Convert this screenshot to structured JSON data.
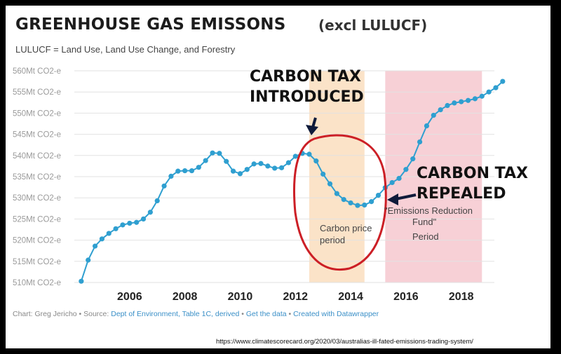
{
  "header": {
    "title": "GREENHOUSE GAS EMISSONS",
    "title_suffix": "(excl LULUCF)",
    "subtitle": "LULUCF = Land Use, Land Use Change, and Forestry"
  },
  "footer": {
    "prefix": "Chart: Greg Jericho • Source: ",
    "source_link": "Dept of Environment, Table 1C, derived",
    "sep1": " • ",
    "get_data_link": "Get the data",
    "sep2": " • ",
    "created_link": "Created with Datawrapper",
    "url": "https://www.climatescorecard.org/2020/03/australias-ill-fated-emissions-trading-system/"
  },
  "colors": {
    "line": "#2f9fd0",
    "carbon_price_band": "#fbe3c8",
    "erf_band": "#f7d0d6",
    "circle": "#cc1f26",
    "arrow": "#0f1a3a"
  },
  "annotations": {
    "introduced_1": "CARBON TAX",
    "introduced_2": "INTRODUCED",
    "repealed_1": "CARBON TAX",
    "repealed_2": "REPEALED",
    "carbon_price_1": "Carbon price",
    "carbon_price_2": "period",
    "erf_1": "\"Emissions Reduction",
    "erf_2": "Fund\"",
    "erf_3": "Period"
  },
  "chart_data": {
    "type": "line",
    "title": "GREENHOUSE GAS EMISSONS",
    "xlabel": "",
    "ylabel": "",
    "xlim": [
      2004.0,
      2019.2
    ],
    "ylim": [
      510,
      560
    ],
    "y_ticks": [
      {
        "v": 510,
        "label": "510Mt CO2-e"
      },
      {
        "v": 515,
        "label": "515Mt CO2-e"
      },
      {
        "v": 520,
        "label": "520Mt CO2-e"
      },
      {
        "v": 525,
        "label": "525Mt CO2-e"
      },
      {
        "v": 530,
        "label": "530Mt CO2-e"
      },
      {
        "v": 535,
        "label": "535Mt CO2-e"
      },
      {
        "v": 540,
        "label": "540Mt CO2-e"
      },
      {
        "v": 545,
        "label": "545Mt CO2-e"
      },
      {
        "v": 550,
        "label": "550Mt CO2-e"
      },
      {
        "v": 555,
        "label": "555Mt CO2-e"
      },
      {
        "v": 560,
        "label": "560Mt CO2-e"
      }
    ],
    "x_ticks": [
      2006,
      2008,
      2010,
      2012,
      2014,
      2016,
      2018
    ],
    "grid": true,
    "bands": [
      {
        "from": 2012.5,
        "to": 2014.5,
        "label": "Carbon price period"
      },
      {
        "from": 2015.25,
        "to": 2018.75,
        "label": "\"Emissions Reduction Fund\" Period"
      }
    ],
    "series": [
      {
        "points": [
          [
            2004.25,
            510.3
          ],
          [
            2004.5,
            515.3
          ],
          [
            2004.75,
            518.6
          ],
          [
            2005.0,
            520.3
          ],
          [
            2005.25,
            521.6
          ],
          [
            2005.5,
            522.7
          ],
          [
            2005.75,
            523.6
          ],
          [
            2006.0,
            524.0
          ],
          [
            2006.25,
            524.2
          ],
          [
            2006.5,
            525.0
          ],
          [
            2006.75,
            526.6
          ],
          [
            2007.0,
            529.3
          ],
          [
            2007.25,
            532.8
          ],
          [
            2007.5,
            535.1
          ],
          [
            2007.75,
            536.3
          ],
          [
            2008.0,
            536.4
          ],
          [
            2008.25,
            536.4
          ],
          [
            2008.5,
            537.2
          ],
          [
            2008.75,
            538.8
          ],
          [
            2009.0,
            540.6
          ],
          [
            2009.25,
            540.5
          ],
          [
            2009.5,
            538.6
          ],
          [
            2009.75,
            536.3
          ],
          [
            2010.0,
            535.7
          ],
          [
            2010.25,
            536.7
          ],
          [
            2010.5,
            538.0
          ],
          [
            2010.75,
            538.1
          ],
          [
            2011.0,
            537.5
          ],
          [
            2011.25,
            537.0
          ],
          [
            2011.5,
            537.1
          ],
          [
            2011.75,
            538.3
          ],
          [
            2012.0,
            539.8
          ],
          [
            2012.25,
            540.5
          ],
          [
            2012.5,
            540.3
          ],
          [
            2012.75,
            538.7
          ],
          [
            2013.0,
            535.6
          ],
          [
            2013.25,
            533.3
          ],
          [
            2013.5,
            531.0
          ],
          [
            2013.75,
            529.6
          ],
          [
            2014.0,
            528.8
          ],
          [
            2014.25,
            528.2
          ],
          [
            2014.5,
            528.3
          ],
          [
            2014.75,
            529.1
          ],
          [
            2015.0,
            530.6
          ],
          [
            2015.25,
            532.4
          ],
          [
            2015.5,
            533.6
          ],
          [
            2015.75,
            534.6
          ],
          [
            2016.0,
            536.7
          ],
          [
            2016.25,
            539.2
          ],
          [
            2016.5,
            543.2
          ],
          [
            2016.75,
            547.0
          ],
          [
            2017.0,
            549.5
          ],
          [
            2017.25,
            550.8
          ],
          [
            2017.5,
            551.8
          ],
          [
            2017.75,
            552.4
          ],
          [
            2018.0,
            552.7
          ],
          [
            2018.25,
            553.0
          ],
          [
            2018.5,
            553.4
          ],
          [
            2018.75,
            554.0
          ],
          [
            2019.0,
            555.0
          ],
          [
            2019.25,
            556.0
          ],
          [
            2019.5,
            557.5
          ]
        ]
      }
    ]
  }
}
